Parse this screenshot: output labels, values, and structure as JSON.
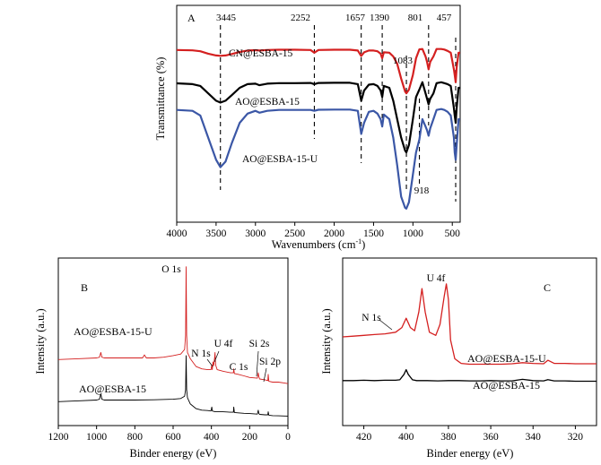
{
  "chart_data": [
    {
      "panel": "A",
      "type": "line",
      "title": "",
      "xlabel": "Wavenumbers (cm",
      "xlabel_sup": "-1",
      "xlabel_close": ")",
      "ylabel": "Transmittance (%)",
      "xlim": [
        4000,
        400
      ],
      "x_reversed": true,
      "xticks": [
        "4000",
        "3500",
        "3000",
        "2500",
        "2000",
        "1500",
        "1000",
        "500"
      ],
      "ylim": [
        0,
        1
      ],
      "yticks_shown": false,
      "series": [
        {
          "name": "CN@ESBA-15",
          "color": "#d42020",
          "x": [
            4000,
            3800,
            3700,
            3600,
            3500,
            3445,
            3380,
            3300,
            3200,
            3100,
            3000,
            2950,
            2850,
            2700,
            2500,
            2300,
            2252,
            2200,
            2000,
            1800,
            1700,
            1657,
            1620,
            1560,
            1500,
            1450,
            1410,
            1390,
            1370,
            1300,
            1250,
            1200,
            1150,
            1100,
            1083,
            1050,
            1000,
            960,
            918,
            880,
            840,
            820,
            801,
            780,
            740,
            700,
            640,
            600,
            560,
            520,
            480,
            470,
            457,
            445,
            420,
            400
          ],
          "y": [
            0.875,
            0.873,
            0.868,
            0.855,
            0.845,
            0.843,
            0.845,
            0.853,
            0.864,
            0.872,
            0.874,
            0.872,
            0.875,
            0.876,
            0.876,
            0.875,
            0.86,
            0.875,
            0.876,
            0.876,
            0.872,
            0.842,
            0.862,
            0.872,
            0.872,
            0.868,
            0.855,
            0.83,
            0.862,
            0.86,
            0.84,
            0.8,
            0.72,
            0.65,
            0.64,
            0.66,
            0.74,
            0.83,
            0.878,
            0.88,
            0.84,
            0.81,
            0.77,
            0.81,
            0.84,
            0.88,
            0.88,
            0.877,
            0.87,
            0.86,
            0.77,
            0.74,
            0.7,
            0.78,
            0.86,
            0.86
          ]
        },
        {
          "name": "AO@ESBA-15",
          "color": "#000000",
          "x": [
            4000,
            3800,
            3700,
            3600,
            3500,
            3445,
            3380,
            3300,
            3200,
            3100,
            3000,
            2950,
            2850,
            2700,
            2500,
            2300,
            2252,
            2200,
            2000,
            1800,
            1700,
            1657,
            1620,
            1560,
            1500,
            1450,
            1410,
            1390,
            1370,
            1300,
            1250,
            1200,
            1150,
            1100,
            1083,
            1050,
            1000,
            960,
            918,
            880,
            840,
            820,
            801,
            780,
            740,
            700,
            640,
            600,
            560,
            520,
            480,
            470,
            457,
            445,
            420,
            400
          ],
          "y": [
            0.694,
            0.69,
            0.68,
            0.64,
            0.6,
            0.59,
            0.6,
            0.63,
            0.67,
            0.69,
            0.692,
            0.684,
            0.692,
            0.695,
            0.695,
            0.696,
            0.69,
            0.696,
            0.697,
            0.697,
            0.69,
            0.6,
            0.655,
            0.687,
            0.69,
            0.68,
            0.656,
            0.62,
            0.68,
            0.67,
            0.6,
            0.5,
            0.4,
            0.33,
            0.32,
            0.36,
            0.5,
            0.62,
            0.66,
            0.7,
            0.64,
            0.61,
            0.58,
            0.61,
            0.64,
            0.695,
            0.7,
            0.695,
            0.69,
            0.68,
            0.56,
            0.52,
            0.48,
            0.56,
            0.67,
            0.67
          ]
        },
        {
          "name": "AO@ESBA-15-U",
          "color": "#3b57a6",
          "x": [
            4000,
            3800,
            3700,
            3600,
            3500,
            3445,
            3380,
            3300,
            3200,
            3100,
            3000,
            2950,
            2850,
            2700,
            2500,
            2300,
            2252,
            2200,
            2000,
            1800,
            1700,
            1657,
            1620,
            1560,
            1500,
            1450,
            1410,
            1390,
            1370,
            1300,
            1250,
            1200,
            1150,
            1100,
            1083,
            1050,
            1000,
            960,
            918,
            880,
            840,
            820,
            801,
            780,
            740,
            700,
            640,
            600,
            560,
            520,
            480,
            470,
            457,
            445,
            420,
            400
          ],
          "y": [
            0.55,
            0.545,
            0.52,
            0.4,
            0.28,
            0.24,
            0.27,
            0.37,
            0.48,
            0.53,
            0.545,
            0.535,
            0.545,
            0.55,
            0.55,
            0.55,
            0.545,
            0.551,
            0.552,
            0.552,
            0.545,
            0.42,
            0.48,
            0.54,
            0.545,
            0.53,
            0.5,
            0.46,
            0.525,
            0.5,
            0.4,
            0.25,
            0.08,
            0.02,
            0.015,
            0.05,
            0.2,
            0.32,
            0.39,
            0.5,
            0.46,
            0.44,
            0.41,
            0.45,
            0.5,
            0.55,
            0.555,
            0.55,
            0.54,
            0.52,
            0.4,
            0.32,
            0.28,
            0.36,
            0.5,
            0.5
          ]
        }
      ],
      "series_labels": [
        "CN@ESBA-15",
        "AO@ESBA-15",
        "AO@ESBA-15-U"
      ],
      "annotations": [
        "3445",
        "2252",
        "1657",
        "1390",
        "801",
        "457",
        "1083",
        "918"
      ]
    },
    {
      "panel": "B",
      "type": "line",
      "xlabel": "Binder energy (eV)",
      "ylabel": "Intensity (a.u.)",
      "xlim": [
        1200,
        0
      ],
      "x_reversed": true,
      "xticks": [
        "1200",
        "1000",
        "800",
        "600",
        "400",
        "200",
        "0"
      ],
      "ylim": [
        0,
        1
      ],
      "series": [
        {
          "name": "AO@ESBA-15-U",
          "color": "#d42020",
          "x": [
            1200,
            1100,
            1000,
            985,
            978,
            972,
            960,
            900,
            850,
            800,
            760,
            750,
            740,
            700,
            650,
            600,
            560,
            540,
            535,
            532,
            529,
            525,
            510,
            480,
            450,
            420,
            402,
            398,
            395,
            392,
            388,
            383,
            381,
            378,
            370,
            340,
            300,
            285,
            283,
            280,
            260,
            230,
            200,
            160,
            155,
            152,
            148,
            120,
            105,
            103,
            100,
            80,
            50,
            20,
            0
          ],
          "y": [
            0.395,
            0.4,
            0.405,
            0.41,
            0.44,
            0.41,
            0.405,
            0.405,
            0.405,
            0.405,
            0.405,
            0.425,
            0.405,
            0.405,
            0.41,
            0.42,
            0.43,
            0.46,
            0.55,
            0.99,
            0.55,
            0.44,
            0.4,
            0.35,
            0.335,
            0.33,
            0.33,
            0.36,
            0.33,
            0.38,
            0.355,
            0.41,
            0.44,
            0.36,
            0.33,
            0.32,
            0.31,
            0.31,
            0.335,
            0.305,
            0.3,
            0.29,
            0.28,
            0.275,
            0.31,
            0.285,
            0.27,
            0.265,
            0.26,
            0.3,
            0.255,
            0.25,
            0.25,
            0.245,
            0.24
          ]
        },
        {
          "name": "AO@ESBA-15",
          "color": "#000000",
          "x": [
            1200,
            1100,
            1000,
            985,
            978,
            972,
            960,
            900,
            850,
            800,
            700,
            600,
            560,
            540,
            535,
            532,
            529,
            525,
            510,
            480,
            450,
            420,
            402,
            398,
            395,
            380,
            340,
            300,
            285,
            283,
            280,
            260,
            230,
            200,
            160,
            155,
            152,
            148,
            120,
            105,
            103,
            100,
            80,
            50,
            20,
            0
          ],
          "y": [
            0.125,
            0.13,
            0.135,
            0.14,
            0.175,
            0.14,
            0.135,
            0.135,
            0.135,
            0.135,
            0.137,
            0.14,
            0.145,
            0.16,
            0.2,
            0.42,
            0.2,
            0.15,
            0.11,
            0.08,
            0.07,
            0.068,
            0.065,
            0.09,
            0.065,
            0.06,
            0.06,
            0.057,
            0.057,
            0.09,
            0.055,
            0.053,
            0.05,
            0.048,
            0.045,
            0.07,
            0.048,
            0.043,
            0.04,
            0.04,
            0.06,
            0.038,
            0.035,
            0.034,
            0.033,
            0.032
          ]
        }
      ],
      "series_labels": [
        "AO@ESBA-15-U",
        "AO@ESBA-15"
      ],
      "annotations": [
        "O 1s",
        "N 1s",
        "U 4f",
        "C 1s",
        "Si 2s",
        "Si 2p"
      ]
    },
    {
      "panel": "C",
      "type": "line",
      "xlabel": "Binder energy (eV)",
      "ylabel": "Intensity (a.u.)",
      "xlim": [
        430,
        310
      ],
      "x_reversed": true,
      "xticks": [
        "420",
        "400",
        "380",
        "360",
        "340",
        "320"
      ],
      "ylim": [
        0,
        1
      ],
      "series": [
        {
          "name": "AO@ESBA-15-U",
          "color": "#d42020",
          "x": [
            430,
            425,
            420,
            415,
            410,
            405,
            402,
            400,
            398,
            396,
            394,
            392.5,
            391,
            389,
            386,
            384,
            382,
            381,
            380,
            379,
            377,
            374,
            370,
            365,
            360,
            355,
            350,
            345,
            340,
            335,
            333,
            330,
            325,
            320,
            315,
            310
          ],
          "y": [
            0.54,
            0.545,
            0.55,
            0.555,
            0.56,
            0.57,
            0.6,
            0.66,
            0.6,
            0.58,
            0.7,
            0.85,
            0.7,
            0.57,
            0.55,
            0.62,
            0.8,
            0.88,
            0.78,
            0.52,
            0.4,
            0.37,
            0.365,
            0.365,
            0.365,
            0.365,
            0.368,
            0.375,
            0.37,
            0.368,
            0.39,
            0.37,
            0.37,
            0.368,
            0.368,
            0.368
          ]
        },
        {
          "name": "AO@ESBA-15",
          "color": "#000000",
          "x": [
            430,
            425,
            420,
            415,
            410,
            405,
            403,
            401,
            400,
            399,
            397,
            395,
            390,
            385,
            380,
            375,
            370,
            365,
            360,
            355,
            350,
            345,
            340,
            335,
            333,
            330,
            325,
            320,
            315,
            310
          ],
          "y": [
            0.26,
            0.26,
            0.262,
            0.26,
            0.262,
            0.262,
            0.265,
            0.3,
            0.33,
            0.3,
            0.265,
            0.26,
            0.26,
            0.258,
            0.26,
            0.26,
            0.258,
            0.258,
            0.26,
            0.258,
            0.258,
            0.268,
            0.26,
            0.258,
            0.266,
            0.258,
            0.258,
            0.256,
            0.256,
            0.256
          ]
        }
      ],
      "series_labels": [
        "AO@ESBA-15-U",
        "AO@ESBA-15"
      ],
      "annotations": [
        "N 1s",
        "U 4f"
      ]
    }
  ]
}
